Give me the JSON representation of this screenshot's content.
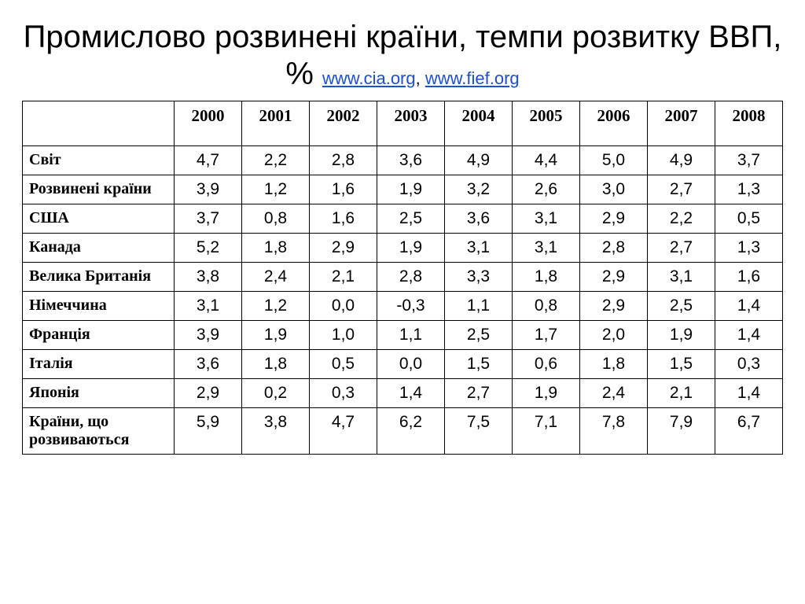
{
  "title_main": "Промислово розвинені країни, темпи розвитку ВВП, % ",
  "source_link_1": "www.cia.org",
  "source_link_sep": ", ",
  "source_link_2": "www.fief.org",
  "table": {
    "type": "table",
    "columns": [
      "2000",
      "2001",
      "2002",
      "2003",
      "2004",
      "2005",
      "2006",
      "2007",
      "2008"
    ],
    "row_label_header": "",
    "rows": [
      {
        "label": "Світ",
        "values": [
          "4,7",
          "2,2",
          "2,8",
          "3,6",
          "4,9",
          "4,4",
          "5,0",
          "4,9",
          "3,7"
        ]
      },
      {
        "label": "Розвинені країни",
        "values": [
          "3,9",
          "1,2",
          "1,6",
          "1,9",
          "3,2",
          "2,6",
          "3,0",
          "2,7",
          "1,3"
        ]
      },
      {
        "label": "США",
        "values": [
          "3,7",
          "0,8",
          "1,6",
          "2,5",
          "3,6",
          "3,1",
          "2,9",
          "2,2",
          "0,5"
        ]
      },
      {
        "label": "Канада",
        "values": [
          "5,2",
          "1,8",
          "2,9",
          "1,9",
          "3,1",
          "3,1",
          "2,8",
          "2,7",
          "1,3"
        ]
      },
      {
        "label": "Велика Британія",
        "values": [
          "3,8",
          "2,4",
          "2,1",
          "2,8",
          "3,3",
          "1,8",
          "2,9",
          "3,1",
          "1,6"
        ]
      },
      {
        "label": "Німеччина",
        "values": [
          "3,1",
          "1,2",
          "0,0",
          "-0,3",
          "1,1",
          "0,8",
          "2,9",
          "2,5",
          "1,4"
        ]
      },
      {
        "label": "Франція",
        "values": [
          "3,9",
          "1,9",
          "1,0",
          "1,1",
          "2,5",
          "1,7",
          "2,0",
          "1,9",
          "1,4"
        ]
      },
      {
        "label": "Італія",
        "values": [
          "3,6",
          "1,8",
          "0,5",
          "0,0",
          "1,5",
          "0,6",
          "1,8",
          "1,5",
          "0,3"
        ]
      },
      {
        "label": "Японія",
        "values": [
          "2,9",
          "0,2",
          "0,3",
          "1,4",
          "2,7",
          "1,9",
          "2,4",
          "2,1",
          "1,4"
        ]
      },
      {
        "label": "Країни, що розвиваються",
        "values": [
          "5,9",
          "3,8",
          "4,7",
          "6,2",
          "7,5",
          "7,1",
          "7,8",
          "7,9",
          "6,7"
        ]
      }
    ],
    "border_color": "#000000",
    "background_color": "#ffffff",
    "header_font": "Times New Roman",
    "header_fontsize": 21,
    "cell_fontsize": 21,
    "label_fontsize": 20,
    "link_color": "#1a4fd6",
    "title_fontsize": 40
  }
}
